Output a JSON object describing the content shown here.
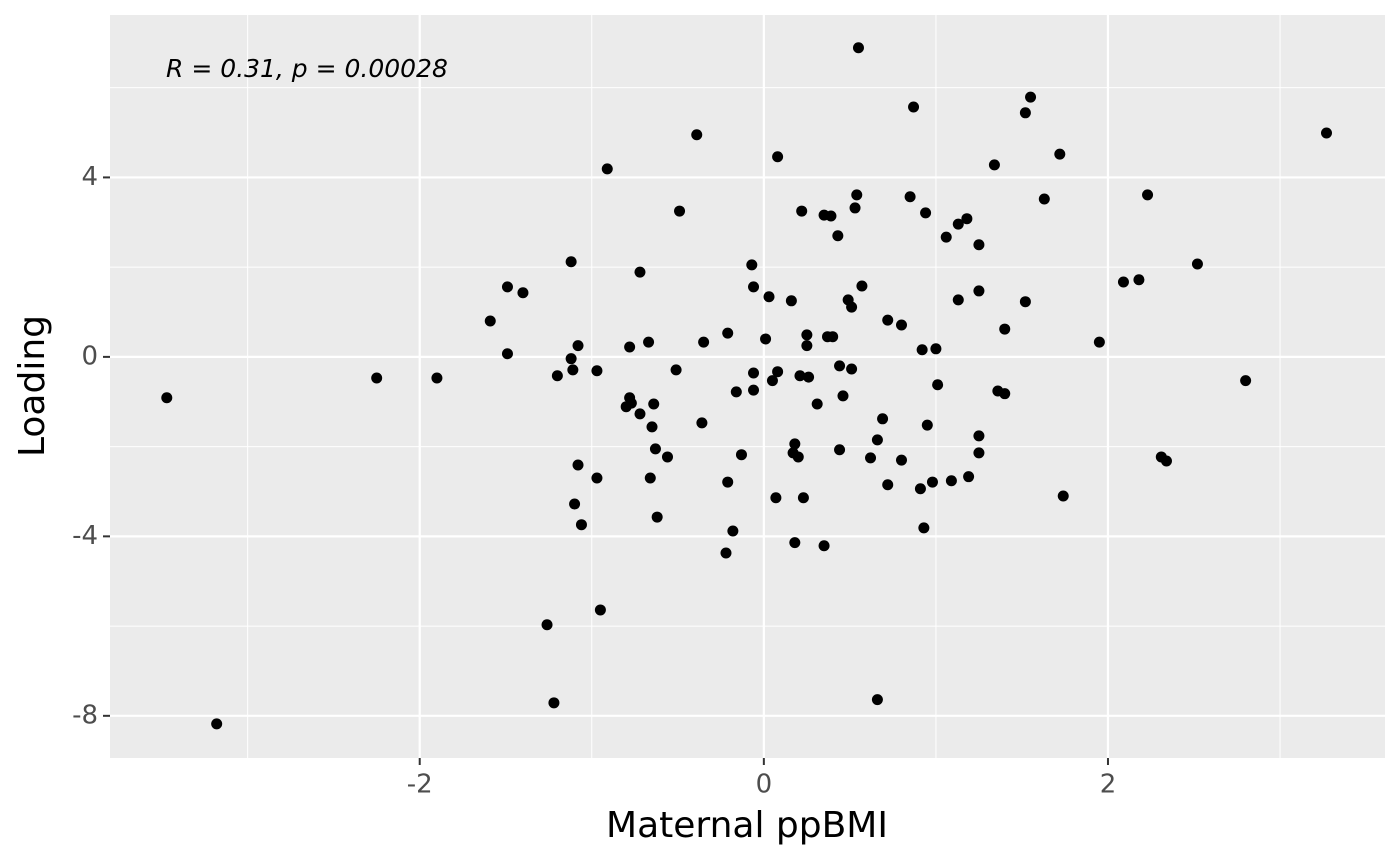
{
  "chart_data": {
    "type": "scatter",
    "annotation": "R = 0.31, p = 0.00028",
    "x_label": "Maternal ppBMI",
    "y_label": "Loading",
    "xlim": [
      -3.8,
      3.61
    ],
    "ylim": [
      -8.94,
      7.62
    ],
    "xticks": [
      -2,
      0,
      2
    ],
    "yticks": [
      -8,
      -4,
      0,
      4
    ],
    "x_minor_grid": [
      -3,
      -1,
      1,
      3
    ],
    "y_minor_grid": [
      -6,
      -2,
      2,
      6
    ],
    "grid": true,
    "color": "#000000",
    "x": [
      -3.47,
      -3.18,
      -2.25,
      -1.9,
      -1.59,
      -1.49,
      -1.49,
      -1.4,
      -1.26,
      -1.22,
      -1.2,
      -1.12,
      -1.12,
      -1.11,
      -1.08,
      -1.1,
      -1.08,
      -1.06,
      -0.97,
      -0.97,
      -0.95,
      -0.91,
      -0.8,
      -0.78,
      -0.78,
      -0.77,
      -0.72,
      -0.72,
      -0.67,
      -0.66,
      -0.65,
      -0.64,
      -0.63,
      -0.62,
      -0.56,
      -0.51,
      -0.49,
      -0.39,
      -0.36,
      -0.35,
      -0.22,
      -0.21,
      -0.21,
      -0.18,
      -0.16,
      -0.13,
      -0.07,
      -0.06,
      -0.06,
      -0.06,
      0.01,
      0.03,
      0.05,
      0.07,
      0.08,
      0.08,
      0.16,
      0.17,
      0.18,
      0.18,
      0.2,
      0.21,
      0.22,
      0.23,
      0.25,
      0.25,
      0.26,
      0.31,
      0.35,
      0.35,
      0.37,
      0.39,
      0.4,
      0.43,
      0.44,
      0.44,
      0.46,
      0.49,
      0.51,
      0.51,
      0.53,
      0.54,
      0.55,
      0.57,
      0.62,
      0.66,
      0.66,
      0.69,
      0.72,
      0.72,
      0.8,
      0.8,
      0.85,
      0.87,
      0.91,
      0.92,
      0.93,
      0.94,
      0.95,
      0.98,
      1.0,
      1.01,
      1.06,
      1.09,
      1.13,
      1.13,
      1.18,
      1.19,
      1.25,
      1.25,
      1.25,
      1.25,
      1.34,
      1.36,
      1.4,
      1.4,
      1.52,
      1.52,
      1.55,
      1.63,
      1.72,
      1.74,
      1.95,
      2.09,
      2.18,
      2.23,
      2.31,
      2.34,
      2.52,
      2.8,
      3.27
    ],
    "values": [
      -0.91,
      -8.18,
      -0.47,
      -0.47,
      0.8,
      1.56,
      0.07,
      1.43,
      -5.97,
      -7.71,
      -0.42,
      2.12,
      -0.04,
      -0.29,
      0.25,
      -3.28,
      -2.41,
      -3.74,
      -0.31,
      -2.7,
      -5.64,
      4.19,
      -1.11,
      -0.91,
      0.22,
      -1.03,
      1.89,
      -1.27,
      0.33,
      -2.7,
      -1.56,
      -1.05,
      -2.05,
      -3.57,
      -2.23,
      -0.29,
      3.25,
      4.95,
      -1.47,
      0.33,
      -4.37,
      -2.79,
      0.53,
      -3.88,
      -0.78,
      -2.18,
      2.05,
      1.56,
      -0.36,
      -0.74,
      0.4,
      1.34,
      -0.53,
      -3.14,
      4.46,
      -0.33,
      1.25,
      -2.14,
      -1.94,
      -4.14,
      -2.23,
      -0.42,
      3.25,
      -3.14,
      0.49,
      0.25,
      -0.45,
      -1.05,
      3.16,
      -4.21,
      0.45,
      3.14,
      0.45,
      2.7,
      -0.2,
      -2.07,
      -0.87,
      1.27,
      1.11,
      -0.27,
      3.32,
      3.61,
      6.89,
      1.58,
      -2.25,
      -1.85,
      -7.64,
      -1.38,
      0.82,
      -2.85,
      0.71,
      -2.3,
      3.57,
      5.57,
      -2.94,
      0.16,
      -3.81,
      3.21,
      -1.52,
      -2.79,
      0.18,
      -0.62,
      2.67,
      -2.76,
      2.96,
      1.27,
      3.08,
      -2.67,
      2.5,
      1.47,
      -1.76,
      -2.14,
      4.28,
      -0.76,
      -0.82,
      0.62,
      5.44,
      1.23,
      5.79,
      3.52,
      4.52,
      -3.1,
      0.33,
      1.67,
      1.72,
      3.61,
      -2.23,
      -2.32,
      2.07,
      -0.53,
      4.99
    ]
  }
}
